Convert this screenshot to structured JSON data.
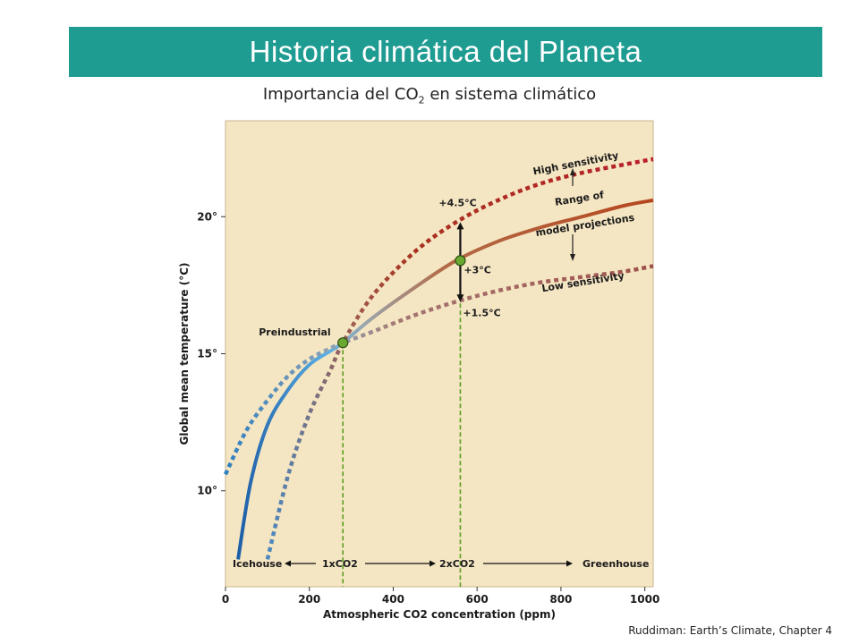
{
  "slide": {
    "title": "Historia climática del Planeta",
    "subtitle_prefix": "Importancia del CO",
    "subtitle_sub": "2",
    "subtitle_suffix": " en sistema climático",
    "credit": "Ruddiman: Earth’s Climate, Chapter 4"
  },
  "colors": {
    "banner": "#1f9c92",
    "plot_bg": "#f5e6c3",
    "warm": "#a83220",
    "warm_mid": "#b55a3a",
    "cool": "#2e7fc2",
    "cool_light": "#5fb1e3",
    "guide": "#5a9e1e",
    "dot": "#6aa832"
  },
  "chart_data": {
    "type": "line",
    "xlabel": "Atmospheric CO2 concentration (ppm)",
    "ylabel": "Global mean temperature (°C)",
    "xlim": [
      0,
      1020
    ],
    "ylim": [
      6.5,
      23.5
    ],
    "x_ticks": [
      0,
      200,
      400,
      600,
      800,
      1000
    ],
    "y_ticks": [
      {
        "value": 10,
        "label": "10°"
      },
      {
        "value": 15,
        "label": "15°"
      },
      {
        "value": 20,
        "label": "20°"
      }
    ],
    "grid": false,
    "series": [
      {
        "key": "central",
        "style": "solid",
        "x": [
          30,
          60,
          100,
          150,
          200,
          250,
          280,
          350,
          450,
          550,
          650,
          750,
          850,
          950,
          1020
        ],
        "y": [
          7.5,
          10.3,
          12.4,
          13.7,
          14.6,
          15.1,
          15.4,
          16.3,
          17.4,
          18.4,
          19.1,
          19.6,
          20.0,
          20.4,
          20.6
        ]
      },
      {
        "key": "high",
        "name": "High sensitivity",
        "style": "dotted",
        "x": [
          100,
          150,
          200,
          250,
          280,
          350,
          450,
          550,
          650,
          750,
          850,
          950,
          1020
        ],
        "y": [
          7.5,
          10.6,
          12.8,
          14.4,
          15.4,
          17.1,
          18.7,
          19.8,
          20.6,
          21.2,
          21.6,
          21.9,
          22.1
        ]
      },
      {
        "key": "low",
        "name": "Low sensitivity",
        "style": "dotted",
        "x": [
          0,
          50,
          100,
          150,
          200,
          250,
          280,
          350,
          450,
          550,
          650,
          750,
          850,
          950,
          1020
        ],
        "y": [
          10.6,
          12.2,
          13.3,
          14.2,
          14.8,
          15.2,
          15.4,
          15.8,
          16.4,
          16.9,
          17.3,
          17.6,
          17.8,
          18.0,
          18.2
        ]
      }
    ],
    "markers": [
      {
        "x": 280,
        "y": 15.4,
        "label": "Preindustrial"
      },
      {
        "x": 560,
        "y": 18.4,
        "label": ""
      }
    ],
    "guides": [
      {
        "x": 280,
        "label": "1xCO2"
      },
      {
        "x": 560,
        "label": "2xCO2"
      }
    ],
    "annotations": {
      "plus45": "+4.5°C",
      "plus3": "+3°C",
      "plus15": "+1.5°C",
      "range1": "Range of",
      "range2": "model projections",
      "high": "High sensitivity",
      "low": "Low sensitivity",
      "icehouse": "Icehouse",
      "greenhouse": "Greenhouse"
    }
  }
}
